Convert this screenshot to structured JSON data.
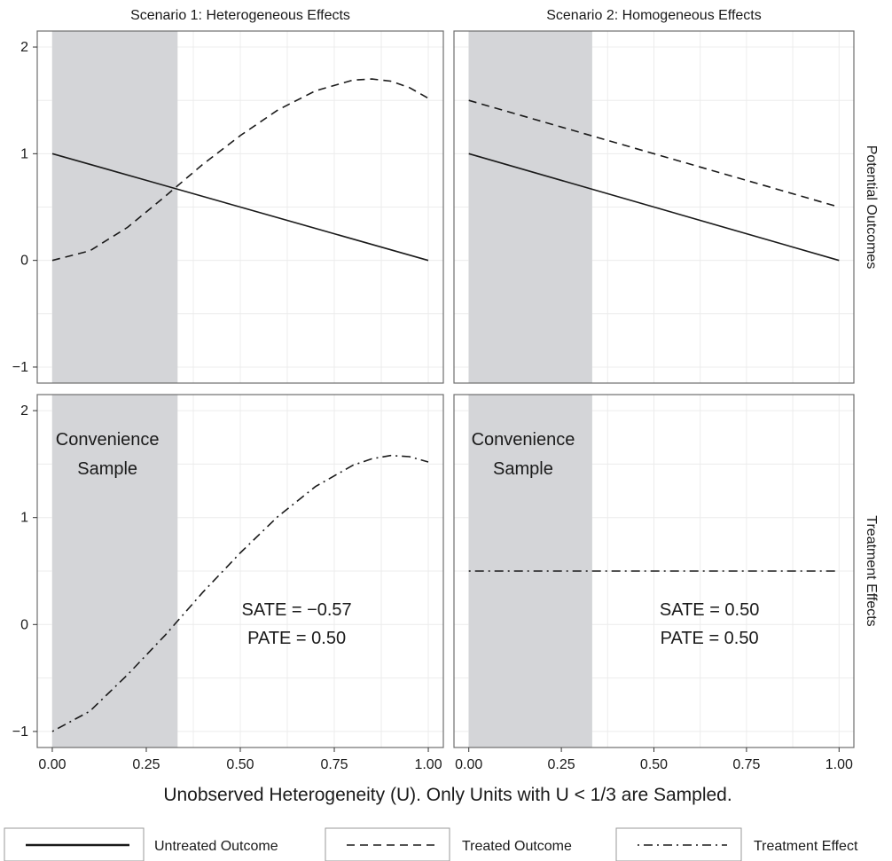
{
  "chart_data": {
    "type": "line",
    "xlabel": "Unobserved Heterogeneity (U). Only Units with U < 1/3 are Sampled.",
    "xlim": [
      -0.04,
      1.04
    ],
    "ylim": [
      -1.15,
      2.15
    ],
    "x_ticks": [
      0,
      0.25,
      0.5,
      0.75,
      1
    ],
    "x_tick_labels": [
      "0.00",
      "0.25",
      "0.50",
      "0.75",
      "1.00"
    ],
    "y_ticks": [
      -1,
      0,
      1,
      2
    ],
    "y_tick_labels": [
      "−1",
      "0",
      "1",
      "2"
    ],
    "grid": true,
    "shaded_region": {
      "x": [
        0,
        0.3333
      ]
    },
    "columns": [
      "Scenario 1: Heterogeneous Effects",
      "Scenario 2: Homogeneous Effects"
    ],
    "rows": [
      "Potential Outcomes",
      "Treatment Effects"
    ],
    "panels": [
      {
        "col": 0,
        "row": 0,
        "series": [
          {
            "key": "untreated",
            "x": [
              0,
              0.25,
              0.5,
              0.75,
              1
            ],
            "y": [
              1,
              0.75,
              0.5,
              0.25,
              0
            ]
          },
          {
            "key": "treated",
            "x": [
              0,
              0.1,
              0.2,
              0.3,
              0.4,
              0.5,
              0.6,
              0.7,
              0.8,
              0.85,
              0.9,
              0.95,
              1
            ],
            "y": [
              0,
              0.09,
              0.31,
              0.6,
              0.9,
              1.17,
              1.41,
              1.59,
              1.69,
              1.7,
              1.68,
              1.62,
              1.52
            ]
          }
        ]
      },
      {
        "col": 1,
        "row": 0,
        "series": [
          {
            "key": "untreated",
            "x": [
              0,
              1
            ],
            "y": [
              1,
              0
            ]
          },
          {
            "key": "treated",
            "x": [
              0,
              1
            ],
            "y": [
              1.5,
              0.5
            ]
          }
        ]
      },
      {
        "col": 0,
        "row": 1,
        "series": [
          {
            "key": "effect",
            "x": [
              0,
              0.1,
              0.2,
              0.3,
              0.4,
              0.5,
              0.6,
              0.7,
              0.8,
              0.85,
              0.9,
              0.95,
              1
            ],
            "y": [
              -1,
              -0.81,
              -0.47,
              -0.1,
              0.3,
              0.67,
              1.01,
              1.29,
              1.49,
              1.55,
              1.58,
              1.57,
              1.52
            ]
          }
        ],
        "annotations": [
          "Convenience",
          "Sample",
          "SATE = −0.57",
          "PATE = 0.50"
        ]
      },
      {
        "col": 1,
        "row": 1,
        "series": [
          {
            "key": "effect",
            "x": [
              0,
              1
            ],
            "y": [
              0.5,
              0.5
            ]
          }
        ],
        "annotations": [
          "Convenience",
          "Sample",
          "SATE = 0.50",
          "PATE = 0.50"
        ]
      }
    ],
    "legend": {
      "position": "bottom",
      "entries": [
        {
          "key": "untreated",
          "label": "Untreated Outcome",
          "dash": "solid"
        },
        {
          "key": "treated",
          "label": "Treated Outcome",
          "dash": "dashed"
        },
        {
          "key": "effect",
          "label": "Treatment Effect",
          "dash": "dotdash"
        }
      ]
    },
    "colors": {
      "line": "#1a1a1a",
      "shade": "#d4d5d8",
      "grid": "#ececec",
      "border": "#6e6e6e"
    }
  }
}
